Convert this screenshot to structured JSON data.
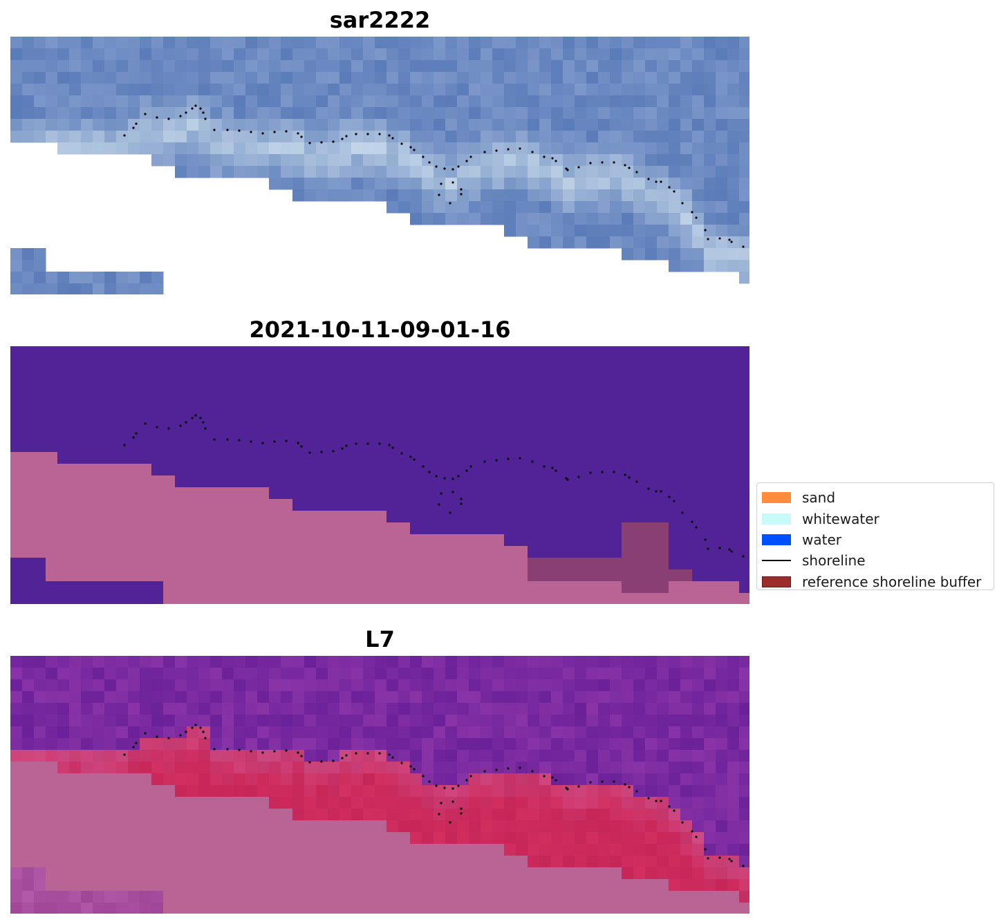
{
  "panels": {
    "rgb": {
      "title": "sar2222"
    },
    "classification": {
      "title": "2021-10-11-09-01-16"
    },
    "index": {
      "title": "L7"
    }
  },
  "legend": {
    "items": [
      {
        "label": "sand",
        "kind": "patch",
        "color": "#ff8c3c"
      },
      {
        "label": "whitewater",
        "kind": "patch",
        "color": "#c8fafa"
      },
      {
        "label": "water",
        "kind": "patch",
        "color": "#0050ff"
      },
      {
        "label": "shoreline",
        "kind": "line",
        "color": "#000000"
      },
      {
        "label": "reference shoreline buffer",
        "kind": "patch",
        "color": "#9b2d2d"
      }
    ]
  },
  "colors": {
    "rgb_water": "#6b89c1",
    "rgb_whitewater": "#c9dcea",
    "class_water": "#522297",
    "class_land": "#ba6495",
    "class_buffer": "#8a3f72",
    "index_water": "#7a2aa0",
    "index_land": "#ba6495",
    "index_wet": "#cc2a5c",
    "shoreline": "#000000"
  }
}
